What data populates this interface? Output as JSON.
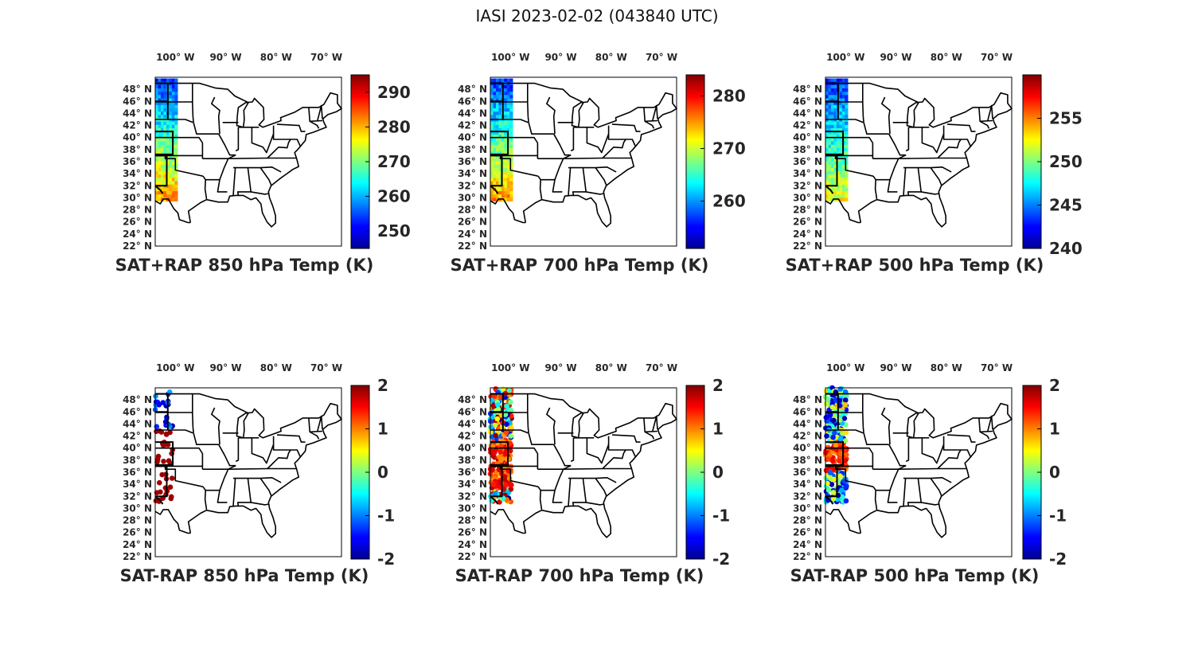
{
  "figure_title": "IASI 2023-02-02 (043840 UTC)",
  "lon_labels": [
    "100° W",
    "90° W",
    "80° W",
    "70° W"
  ],
  "lat_labels": [
    "48° N",
    "46° N",
    "44° N",
    "42° N",
    "40° N",
    "38° N",
    "36° N",
    "34° N",
    "32° N",
    "30° N",
    "28° N",
    "26° N",
    "24° N",
    "22° N"
  ],
  "map_extent": {
    "lon_min": -104,
    "lon_max": -67,
    "lat_min": 22,
    "lat_max": 50
  },
  "colormap": "jet",
  "colors": {
    "frame": "#000000",
    "text": "#262626"
  },
  "chart_data": [
    {
      "type": "map",
      "title": "SAT+RAP 850 hPa Temp (K)",
      "colorbar": {
        "min": 245,
        "max": 295,
        "ticks": [
          250,
          260,
          270,
          280,
          290
        ],
        "tick_labels": [
          "250",
          "260",
          "270",
          "280",
          "290"
        ]
      }
    },
    {
      "type": "map",
      "title": "SAT+RAP 700 hPa Temp (K)",
      "colorbar": {
        "min": 251,
        "max": 284,
        "ticks": [
          260,
          270,
          280
        ],
        "tick_labels": [
          "260",
          "270",
          "280"
        ]
      }
    },
    {
      "type": "map",
      "title": "SAT+RAP 500 hPa Temp (K)",
      "colorbar": {
        "min": 240,
        "max": 260,
        "ticks": [
          240,
          245,
          250,
          255
        ],
        "tick_labels": [
          "240",
          "245",
          "250",
          "255"
        ]
      }
    },
    {
      "type": "map",
      "title": "SAT-RAP 850 hPa Temp (K)",
      "colorbar": {
        "min": -2,
        "max": 2,
        "ticks": [
          -2,
          -1,
          0,
          1,
          2
        ],
        "tick_labels": [
          "-2",
          "-1",
          "0",
          "1",
          "2"
        ]
      }
    },
    {
      "type": "map",
      "title": "SAT-RAP 700 hPa Temp (K)",
      "colorbar": {
        "min": -2,
        "max": 2,
        "ticks": [
          -2,
          -1,
          0,
          1,
          2
        ],
        "tick_labels": [
          "-2",
          "-1",
          "0",
          "1",
          "2"
        ]
      }
    },
    {
      "type": "map",
      "title": "SAT-RAP 500 hPa Temp (K)",
      "colorbar": {
        "min": -2,
        "max": 2,
        "ticks": [
          -2,
          -1,
          0,
          1,
          2
        ],
        "tick_labels": [
          "-2",
          "-1",
          "0",
          "1",
          "2"
        ]
      }
    }
  ]
}
